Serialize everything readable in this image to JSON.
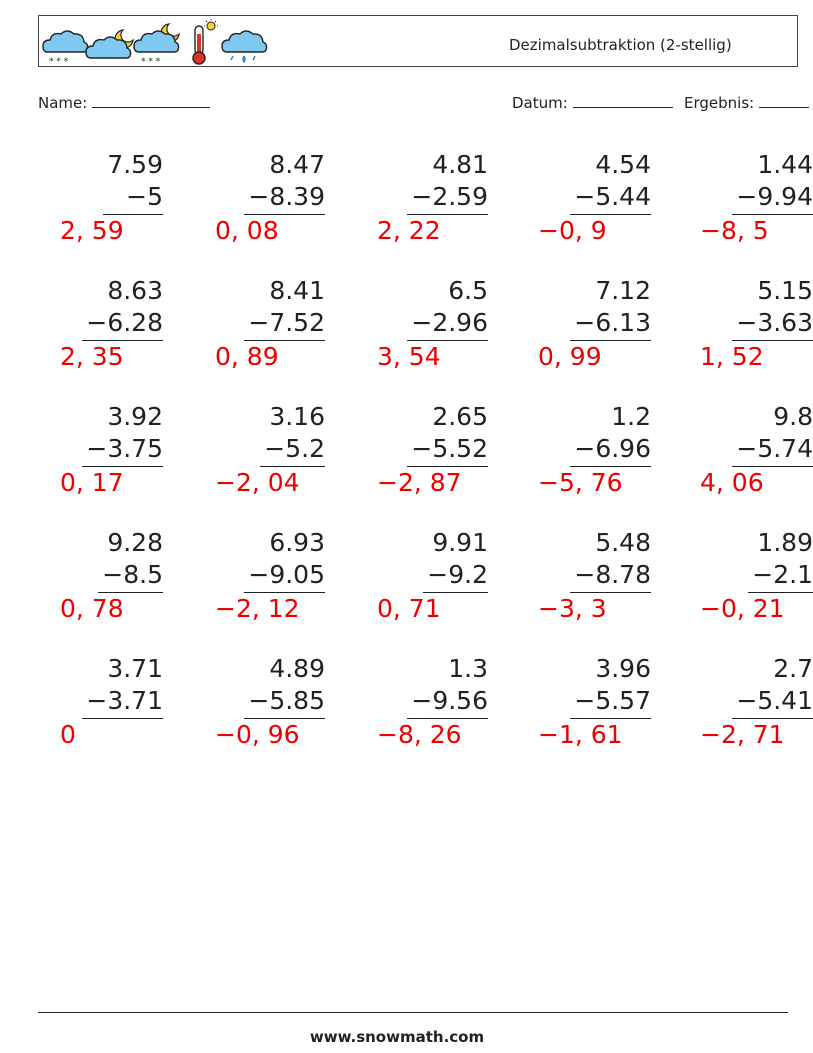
{
  "header": {
    "title": "Dezimalsubtraktion (2-stellig)",
    "icons": [
      "snow-cloud-icon",
      "cloud-moon-icon",
      "snow-cloud-moon-icon",
      "thermometer-sun-icon",
      "rain-cloud-icon"
    ]
  },
  "meta": {
    "name_label": "Name:",
    "date_label": "Datum:",
    "result_label": "Ergebnis:"
  },
  "problems": [
    {
      "a": "7.59",
      "b": "−5",
      "ans": "2, 59"
    },
    {
      "a": "8.47",
      "b": "−8.39",
      "ans": "0, 08"
    },
    {
      "a": "4.81",
      "b": "−2.59",
      "ans": "2, 22"
    },
    {
      "a": "4.54",
      "b": "−5.44",
      "ans": "−0, 9"
    },
    {
      "a": "1.44",
      "b": "−9.94",
      "ans": "−8, 5"
    },
    {
      "a": "8.63",
      "b": "−6.28",
      "ans": "2, 35"
    },
    {
      "a": "8.41",
      "b": "−7.52",
      "ans": "0, 89"
    },
    {
      "a": "6.5",
      "b": "−2.96",
      "ans": "3, 54"
    },
    {
      "a": "7.12",
      "b": "−6.13",
      "ans": "0, 99"
    },
    {
      "a": "5.15",
      "b": "−3.63",
      "ans": "1, 52"
    },
    {
      "a": "3.92",
      "b": "−3.75",
      "ans": "0, 17"
    },
    {
      "a": "3.16",
      "b": "−5.2",
      "ans": "−2, 04"
    },
    {
      "a": "2.65",
      "b": "−5.52",
      "ans": "−2, 87"
    },
    {
      "a": "1.2",
      "b": "−6.96",
      "ans": "−5, 76"
    },
    {
      "a": "9.8",
      "b": "−5.74",
      "ans": "4, 06"
    },
    {
      "a": "9.28",
      "b": "−8.5",
      "ans": "0, 78"
    },
    {
      "a": "6.93",
      "b": "−9.05",
      "ans": "−2, 12"
    },
    {
      "a": "9.91",
      "b": "−9.2",
      "ans": "0, 71"
    },
    {
      "a": "5.48",
      "b": "−8.78",
      "ans": "−3, 3"
    },
    {
      "a": "1.89",
      "b": "−2.1",
      "ans": "−0, 21"
    },
    {
      "a": "3.71",
      "b": "−3.71",
      "ans": "0"
    },
    {
      "a": "4.89",
      "b": "−5.85",
      "ans": "−0, 96"
    },
    {
      "a": "1.3",
      "b": "−9.56",
      "ans": "−8, 26"
    },
    {
      "a": "3.96",
      "b": "−5.57",
      "ans": "−1, 61"
    },
    {
      "a": "2.7",
      "b": "−5.41",
      "ans": "−2, 71"
    }
  ],
  "footer": {
    "url": "www.snowmath.com"
  }
}
